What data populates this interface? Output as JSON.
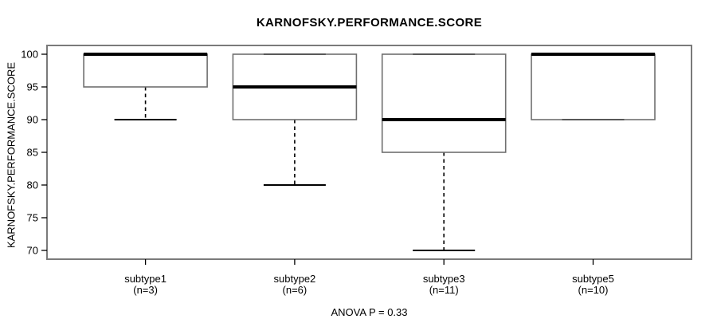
{
  "chart_data": {
    "type": "boxplot",
    "title": "KARNOFSKY.PERFORMANCE.SCORE",
    "ylabel": "KARNOFSKY.PERFORMANCE.SCORE",
    "xlabel": "",
    "annotation": "ANOVA P = 0.33",
    "y_ticks": [
      100,
      95,
      90,
      85,
      80,
      75,
      70
    ],
    "ylim": [
      68.7,
      101.3
    ],
    "grid": false,
    "legend": "none",
    "series": [
      {
        "label": "subtype1",
        "sublabel": "(n=3)",
        "whisker_low": 90,
        "q1": 95,
        "median": 100,
        "q3": 100,
        "whisker_high": 100
      },
      {
        "label": "subtype2",
        "sublabel": "(n=6)",
        "whisker_low": 80,
        "q1": 90,
        "median": 95,
        "q3": 100,
        "whisker_high": 100
      },
      {
        "label": "subtype3",
        "sublabel": "(n=11)",
        "whisker_low": 70,
        "q1": 85,
        "median": 90,
        "q3": 100,
        "whisker_high": 100
      },
      {
        "label": "subtype5",
        "sublabel": "(n=10)",
        "whisker_low": 90,
        "q1": 90,
        "median": 100,
        "q3": 100,
        "whisker_high": 100
      }
    ],
    "colors": {
      "background": "#ffffff",
      "plot_border": "#7a7a7a",
      "box_stroke": "#6f6f6f",
      "median": "#000000",
      "whisker": "#000000",
      "text": "#000000"
    }
  }
}
